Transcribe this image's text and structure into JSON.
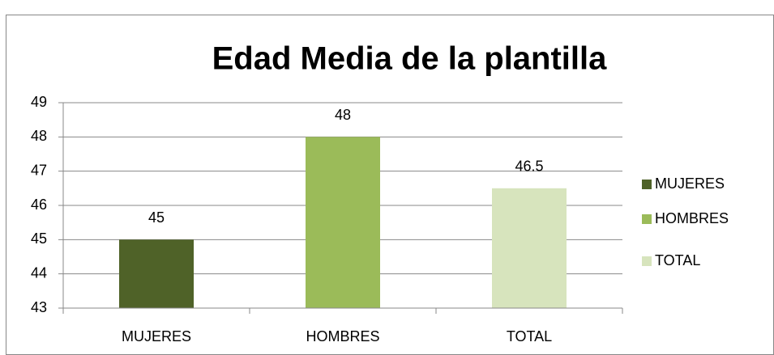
{
  "chart_data": {
    "type": "bar",
    "title": "Edad Media de la plantilla",
    "categories": [
      "MUJERES",
      "HOMBRES",
      "TOTAL"
    ],
    "values": [
      45,
      48,
      46.5
    ],
    "colors": [
      "#4f6228",
      "#9bbb59",
      "#d7e4bd"
    ],
    "ylim": [
      43,
      49
    ],
    "yticks": [
      43,
      44,
      45,
      46,
      47,
      48,
      49
    ],
    "grid": true,
    "legend": "right"
  }
}
